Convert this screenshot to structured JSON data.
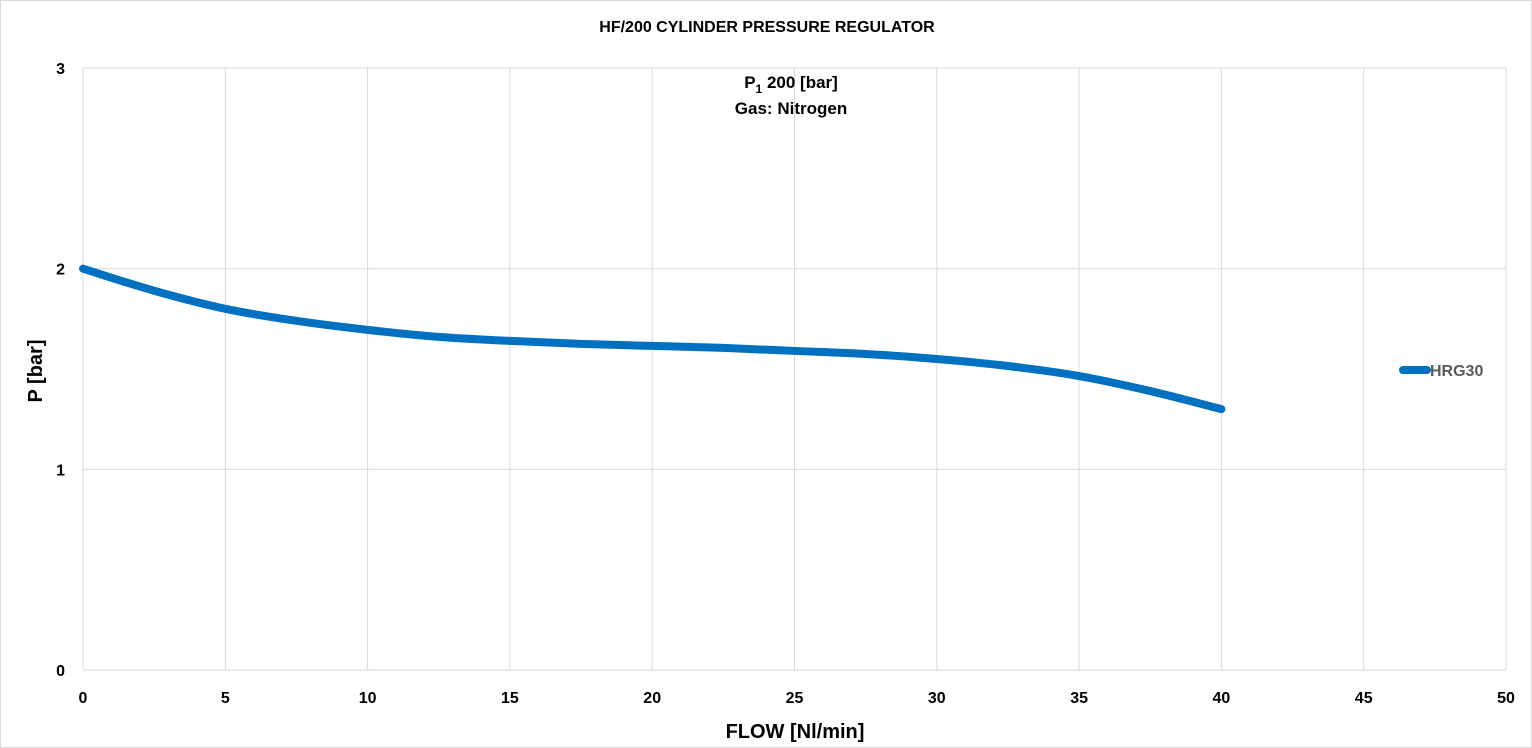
{
  "chart_data": {
    "type": "line",
    "title": "HF/200 CYLINDER PRESSURE REGULATOR",
    "annotation": {
      "p_symbol": "P",
      "p_subscript": "1",
      "p_value": " 200 [bar]",
      "gas": "Gas: Nitrogen"
    },
    "xlabel": "FLOW [Nl/min]",
    "ylabel": "P [bar]",
    "xlim": [
      0,
      50
    ],
    "ylim": [
      0,
      3
    ],
    "x_ticks": [
      "0",
      "5",
      "10",
      "15",
      "20",
      "25",
      "30",
      "35",
      "40",
      "45",
      "50"
    ],
    "y_ticks": [
      "0",
      "1",
      "2",
      "3"
    ],
    "grid": true,
    "legend_position": "right",
    "series": [
      {
        "name": "HRG30",
        "color": "#0070C0",
        "x": [
          0,
          2.5,
          5,
          7.5,
          10,
          12.5,
          15,
          17.5,
          20,
          22.5,
          25,
          27.5,
          30,
          32.5,
          35,
          37.5,
          40
        ],
        "y": [
          2.0,
          1.89,
          1.8,
          1.74,
          1.695,
          1.66,
          1.64,
          1.625,
          1.615,
          1.605,
          1.59,
          1.575,
          1.55,
          1.515,
          1.465,
          1.39,
          1.3
        ]
      }
    ]
  }
}
